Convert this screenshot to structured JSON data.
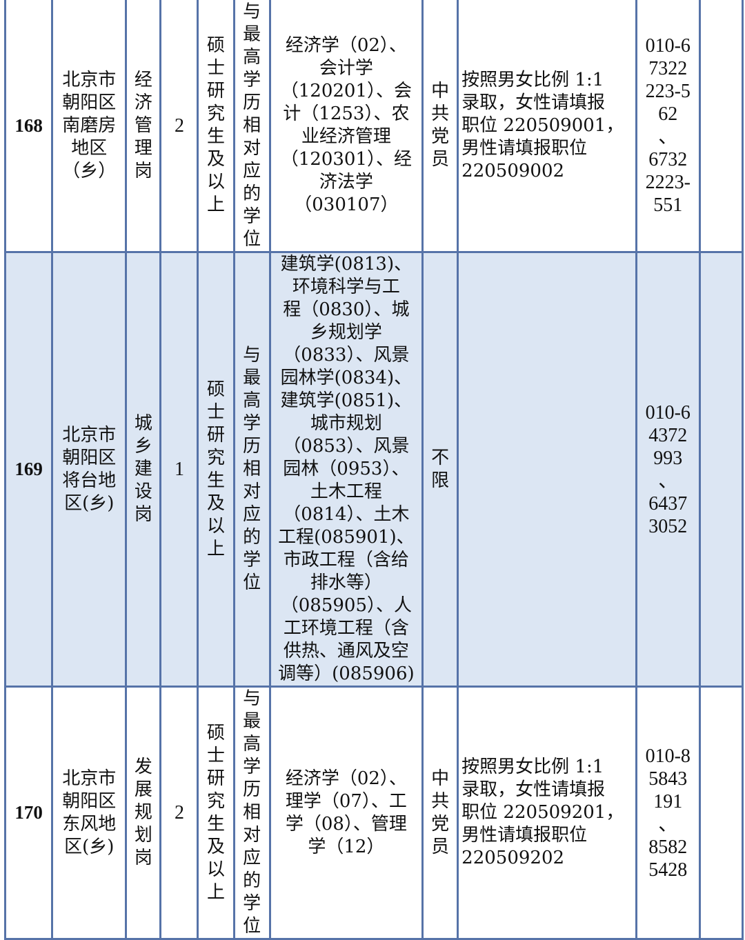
{
  "rows": [
    {
      "no": "168",
      "unit": "北京市\n朝阳区\n南磨房\n地区\n（乡）",
      "position": "经济管理岗",
      "count": "2",
      "education": "硕士研究生及以上",
      "degree": "与最高学历相对应的学位",
      "major": "经济学（02）、\n会计学\n（120201）、会\n计（1253）、农\n业经济管理\n（120301）、经\n济法学\n（030107）",
      "politics": "中共党员",
      "remarks": "按照男女比例 1:1\n录取，女性请填报\n职位 220509001，\n男性请填报职位\n220509002",
      "phone": "010-6\n7322\n223-5\n62\n、\n6732\n2223-\n551",
      "extra": ""
    },
    {
      "no": "169",
      "unit": "北京市\n朝阳区\n将台地\n区(乡)",
      "position": "城乡建设岗",
      "count": "1",
      "education": "硕士研究生及以上",
      "degree": "与最高学历相对应的学位",
      "major": "建筑学(0813)、\n环境科学与工\n程（0830）、城\n乡规划学\n（0833）、风景\n园林学(0834)、\n建筑学(0851)、\n城市规划\n（0853）、风景\n园林（0953）、\n土木工程\n（0814）、土木\n工程(085901)、\n市政工程（含给\n排水等）\n（085905）、人\n工环境工程（含\n供热、通风及空\n调等）(085906)",
      "politics": "不限",
      "remarks": "",
      "phone": "010-6\n4372\n993\n、\n6437\n3052",
      "extra": ""
    },
    {
      "no": "170",
      "unit": "北京市\n朝阳区\n东风地\n区(乡)",
      "position": "发展规划岗",
      "count": "2",
      "education": "硕士研究生及以上",
      "degree": "与最高学历相对应的学位",
      "major": "经济学（02）、\n理学（07）、工\n学（08）、管理\n学（12）",
      "politics": "中共党员",
      "remarks": "按照男女比例 1:1\n录取，女性请填报\n职位 220509201，\n男性请填报职位\n220509202",
      "phone": "010-8\n5843\n191\n、\n8582\n5428",
      "extra": ""
    }
  ]
}
